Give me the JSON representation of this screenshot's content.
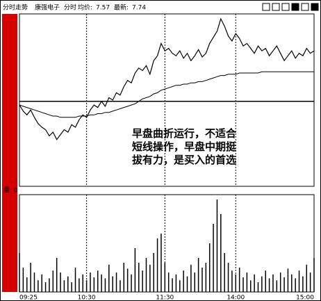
{
  "chart_data": {
    "type": "line",
    "header": {
      "title": "分时走势",
      "stock": "康强电子",
      "mode": "分时",
      "avg_label": "均价:",
      "avg_value": 7.57,
      "last_label": "最新:",
      "last_value": 7.74
    },
    "annotation": "早盘曲折运行，不适合短线操作，早盘中期挺拔有力，是买入的首选",
    "volume_label": "量: 0",
    "xlim": [
      0,
      79
    ],
    "xticks": [
      {
        "value": 0,
        "label": "09:25"
      },
      {
        "value": 18,
        "label": "10:30"
      },
      {
        "value": 39,
        "label": "11:30"
      },
      {
        "value": 58,
        "label": "14:00"
      },
      {
        "value": 79,
        "label": "15:00"
      }
    ],
    "ylim": [
      6.64,
      8.04
    ],
    "prev_close": 7.33,
    "series": [
      {
        "color": "#000000",
        "values": [
          7.3,
          7.25,
          7.22,
          7.26,
          7.2,
          7.15,
          7.12,
          7.1,
          7.05,
          7.08,
          7.02,
          7.06,
          7.1,
          7.08,
          7.14,
          7.12,
          7.18,
          7.22,
          7.2,
          7.26,
          7.3,
          7.28,
          7.33,
          7.29,
          7.36,
          7.34,
          7.4,
          7.38,
          7.45,
          7.5,
          7.48,
          7.56,
          7.6,
          7.58,
          7.62,
          7.55,
          7.66,
          7.7,
          7.8,
          7.74,
          7.76,
          7.72,
          7.7,
          7.74,
          7.68,
          7.72,
          7.66,
          7.7,
          7.75,
          7.69,
          7.72,
          7.8,
          7.85,
          7.9,
          8.0,
          7.94,
          7.86,
          7.82,
          7.88,
          7.84,
          7.78,
          7.8,
          7.76,
          7.72,
          7.78,
          7.74,
          7.76,
          7.7,
          7.74,
          7.78,
          7.72,
          7.66,
          7.7,
          7.74,
          7.68,
          7.72,
          7.7,
          7.76,
          7.72,
          7.74
        ]
      },
      {
        "color": "#000000",
        "values": [
          7.3,
          7.29,
          7.28,
          7.27,
          7.26,
          7.25,
          7.24,
          7.23,
          7.22,
          7.21,
          7.21,
          7.2,
          7.2,
          7.2,
          7.2,
          7.2,
          7.21,
          7.21,
          7.21,
          7.22,
          7.22,
          7.23,
          7.23,
          7.24,
          7.24,
          7.25,
          7.26,
          7.27,
          7.28,
          7.29,
          7.3,
          7.31,
          7.33,
          7.35,
          7.36,
          7.37,
          7.39,
          7.4,
          7.42,
          7.43,
          7.44,
          7.45,
          7.46,
          7.46,
          7.47,
          7.47,
          7.48,
          7.48,
          7.49,
          7.49,
          7.5,
          7.51,
          7.52,
          7.53,
          7.54,
          7.54,
          7.55,
          7.55,
          7.55,
          7.56,
          7.56,
          7.56,
          7.56,
          7.56,
          7.56,
          7.57,
          7.57,
          7.57,
          7.57,
          7.57,
          7.57,
          7.57,
          7.57,
          7.57,
          7.57,
          7.57,
          7.57,
          7.57,
          7.57,
          7.57
        ]
      }
    ],
    "volume": {
      "color": "#000000",
      "ylim": [
        0,
        100
      ],
      "values": [
        40,
        25,
        15,
        30,
        20,
        12,
        18,
        10,
        14,
        22,
        35,
        20,
        12,
        16,
        10,
        25,
        14,
        18,
        12,
        20,
        15,
        22,
        18,
        14,
        28,
        16,
        20,
        12,
        30,
        24,
        18,
        45,
        30,
        22,
        35,
        28,
        40,
        55,
        60,
        30,
        20,
        14,
        18,
        12,
        22,
        16,
        28,
        20,
        35,
        25,
        30,
        50,
        70,
        95,
        80,
        40,
        30,
        22,
        18,
        25,
        15,
        20,
        12,
        18,
        10,
        16,
        22,
        14,
        18,
        12,
        20,
        15,
        24,
        18,
        14,
        22,
        16,
        28,
        20,
        35
      ]
    }
  }
}
